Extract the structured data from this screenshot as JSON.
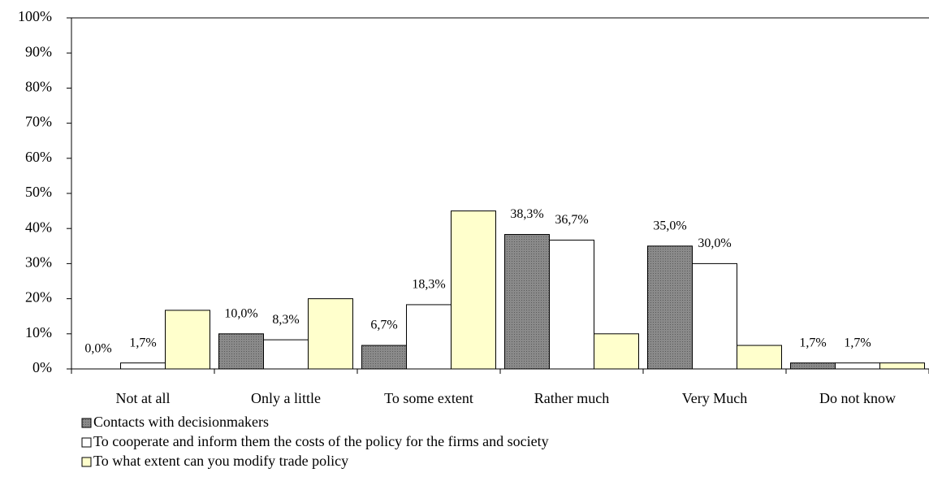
{
  "chart_data": {
    "type": "bar",
    "categories": [
      "Not at all",
      "Only a little",
      "To some extent",
      "Rather much",
      "Very Much",
      "Do not know"
    ],
    "series": [
      {
        "name": "Contacts with decisionmakers",
        "color": "#808080",
        "values": [
          0.0,
          10.0,
          6.7,
          38.3,
          35.0,
          1.7
        ],
        "value_labels": [
          "0,0%",
          "10,0%",
          "6,7%",
          "38,3%",
          "35,0%",
          "1,7%"
        ]
      },
      {
        "name": "To cooperate and inform them the costs of the policy for the firms and society",
        "color": "#ffffff",
        "values": [
          1.7,
          8.3,
          18.3,
          36.7,
          30.0,
          1.7
        ],
        "value_labels": [
          "1,7%",
          "8,3%",
          "18,3%",
          "36,7%",
          "30,0%",
          "1,7%"
        ]
      },
      {
        "name": "To what extent can you modify trade policy",
        "color": "#ffffcc",
        "values": [
          16.7,
          20.0,
          45.0,
          10.0,
          6.7,
          1.7
        ]
      }
    ],
    "ylim": [
      0,
      100
    ],
    "yticks": [
      {
        "value": 0,
        "label": "0%"
      },
      {
        "value": 10,
        "label": "10%"
      },
      {
        "value": 20,
        "label": "20%"
      },
      {
        "value": 30,
        "label": "30%"
      },
      {
        "value": 40,
        "label": "40%"
      },
      {
        "value": 50,
        "label": "50%"
      },
      {
        "value": 60,
        "label": "60%"
      },
      {
        "value": 70,
        "label": "70%"
      },
      {
        "value": 80,
        "label": "80%"
      },
      {
        "value": 90,
        "label": "90%"
      },
      {
        "value": 100,
        "label": "100%"
      }
    ],
    "grid": false
  }
}
